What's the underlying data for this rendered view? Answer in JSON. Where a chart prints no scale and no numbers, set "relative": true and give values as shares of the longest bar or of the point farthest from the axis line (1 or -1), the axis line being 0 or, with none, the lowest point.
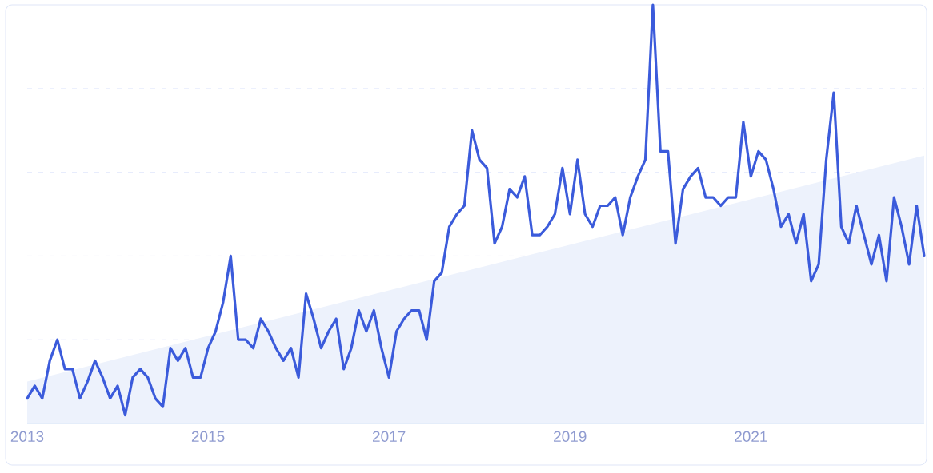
{
  "chart_data": {
    "type": "line",
    "relative": true,
    "grid": "y",
    "xlim": [
      "2013-01",
      "2022-12"
    ],
    "xticks": [
      "2013",
      "2015",
      "2017",
      "2019",
      "2021"
    ],
    "x": [
      "2013-01",
      "2013-02",
      "2013-03",
      "2013-04",
      "2013-05",
      "2013-06",
      "2013-07",
      "2013-08",
      "2013-09",
      "2013-10",
      "2013-11",
      "2013-12",
      "2014-01",
      "2014-02",
      "2014-03",
      "2014-04",
      "2014-05",
      "2014-06",
      "2014-07",
      "2014-08",
      "2014-09",
      "2014-10",
      "2014-11",
      "2014-12",
      "2015-01",
      "2015-02",
      "2015-03",
      "2015-04",
      "2015-05",
      "2015-06",
      "2015-07",
      "2015-08",
      "2015-09",
      "2015-10",
      "2015-11",
      "2015-12",
      "2016-01",
      "2016-02",
      "2016-03",
      "2016-04",
      "2016-05",
      "2016-06",
      "2016-07",
      "2016-08",
      "2016-09",
      "2016-10",
      "2016-11",
      "2016-12",
      "2017-01",
      "2017-02",
      "2017-03",
      "2017-04",
      "2017-05",
      "2017-06",
      "2017-07",
      "2017-08",
      "2017-09",
      "2017-10",
      "2017-11",
      "2017-12",
      "2018-01",
      "2018-02",
      "2018-03",
      "2018-04",
      "2018-05",
      "2018-06",
      "2018-07",
      "2018-08",
      "2018-09",
      "2018-10",
      "2018-11",
      "2018-12",
      "2019-01",
      "2019-02",
      "2019-03",
      "2019-04",
      "2019-05",
      "2019-06",
      "2019-07",
      "2019-08",
      "2019-09",
      "2019-10",
      "2019-11",
      "2019-12",
      "2020-01",
      "2020-02",
      "2020-03",
      "2020-04",
      "2020-05",
      "2020-06",
      "2020-07",
      "2020-08",
      "2020-09",
      "2020-10",
      "2020-11",
      "2020-12",
      "2021-01",
      "2021-02",
      "2021-03",
      "2021-04",
      "2021-05",
      "2021-06",
      "2021-07",
      "2021-08",
      "2021-09",
      "2021-10",
      "2021-11",
      "2021-12",
      "2022-01",
      "2022-02",
      "2022-03",
      "2022-04",
      "2022-05",
      "2022-06",
      "2022-07",
      "2022-08",
      "2022-09",
      "2022-10",
      "2022-11",
      "2022-12"
    ],
    "series": [
      {
        "type": "area",
        "color": "#edf2fc",
        "x": [
          "2013-01",
          "2022-12"
        ],
        "values": [
          0.1,
          0.64
        ]
      },
      {
        "color": "#3b5bdb",
        "values": [
          0.06,
          0.09,
          0.06,
          0.15,
          0.2,
          0.13,
          0.13,
          0.06,
          0.1,
          0.15,
          0.11,
          0.06,
          0.09,
          0.02,
          0.11,
          0.13,
          0.11,
          0.06,
          0.04,
          0.18,
          0.15,
          0.18,
          0.11,
          0.11,
          0.18,
          0.22,
          0.29,
          0.4,
          0.2,
          0.2,
          0.18,
          0.25,
          0.22,
          0.18,
          0.15,
          0.18,
          0.11,
          0.31,
          0.25,
          0.18,
          0.22,
          0.25,
          0.13,
          0.18,
          0.27,
          0.22,
          0.27,
          0.18,
          0.11,
          0.22,
          0.25,
          0.27,
          0.27,
          0.2,
          0.34,
          0.36,
          0.47,
          0.5,
          0.52,
          0.7,
          0.63,
          0.61,
          0.43,
          0.47,
          0.56,
          0.54,
          0.59,
          0.45,
          0.45,
          0.47,
          0.5,
          0.61,
          0.5,
          0.63,
          0.5,
          0.47,
          0.52,
          0.52,
          0.54,
          0.45,
          0.54,
          0.59,
          0.63,
          1.0,
          0.65,
          0.65,
          0.43,
          0.56,
          0.59,
          0.61,
          0.54,
          0.54,
          0.52,
          0.54,
          0.54,
          0.72,
          0.59,
          0.65,
          0.63,
          0.56,
          0.47,
          0.5,
          0.43,
          0.5,
          0.34,
          0.38,
          0.63,
          0.79,
          0.47,
          0.43,
          0.52,
          0.45,
          0.38,
          0.45,
          0.34,
          0.54,
          0.47,
          0.38,
          0.52,
          0.4
        ]
      }
    ]
  }
}
